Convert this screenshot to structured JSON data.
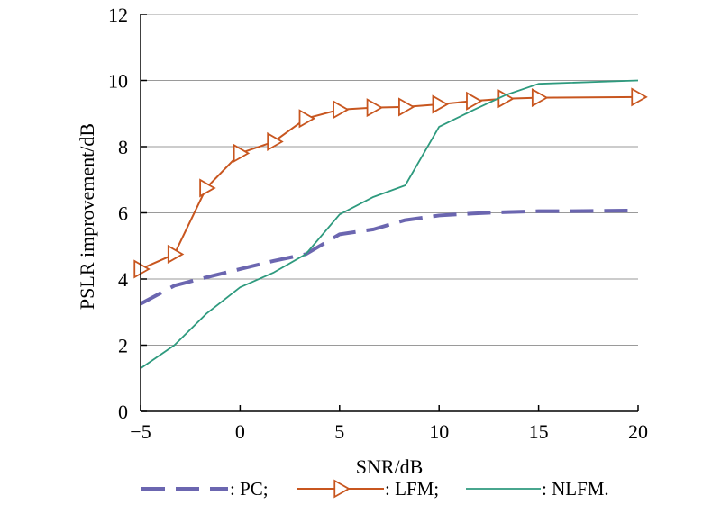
{
  "chart_data": {
    "type": "line",
    "xlabel": "SNR/dB",
    "ylabel": "PSLR improvement/dB",
    "xlim": [
      -5,
      20
    ],
    "ylim": [
      0,
      12
    ],
    "xticks": [
      -5,
      0,
      5,
      10,
      15,
      20
    ],
    "xtick_labels": [
      "−5",
      "0",
      "5",
      "10",
      "15",
      "20"
    ],
    "yticks": [
      0,
      2,
      4,
      6,
      8,
      10,
      12
    ],
    "ytick_labels": [
      "0",
      "2",
      "4",
      "6",
      "8",
      "10",
      "12"
    ],
    "grid": "horizontal",
    "legend_position": "bottom",
    "series": [
      {
        "name": ": PC;",
        "style": "dashed",
        "marker": "none",
        "color": "#6b66b0",
        "x": [
          -5,
          -3.3,
          -1.7,
          0,
          1.7,
          3.3,
          5,
          6.7,
          8.3,
          10,
          11.7,
          13.3,
          15,
          16.7,
          18.3,
          20
        ],
        "y": [
          3.25,
          3.8,
          4.05,
          4.3,
          4.55,
          4.75,
          5.35,
          5.5,
          5.78,
          5.92,
          5.98,
          6.02,
          6.05,
          6.05,
          6.06,
          6.07
        ]
      },
      {
        "name": ": LFM;",
        "style": "solid",
        "marker": "triangle-right",
        "color": "#c8561f",
        "x": [
          -5,
          -3.3,
          -1.7,
          0,
          1.7,
          3.3,
          5,
          6.7,
          8.3,
          10,
          11.7,
          13.3,
          15,
          20
        ],
        "y": [
          4.3,
          4.75,
          6.75,
          7.8,
          8.15,
          8.85,
          9.12,
          9.18,
          9.2,
          9.28,
          9.38,
          9.45,
          9.48,
          9.5
        ]
      },
      {
        "name": ": NLFM.",
        "style": "solid",
        "marker": "none",
        "color": "#2e9a7e",
        "x": [
          -5,
          -3.3,
          -1.7,
          0,
          1.7,
          3.3,
          5,
          6.7,
          8.3,
          10,
          11.7,
          13.3,
          15,
          20
        ],
        "y": [
          1.3,
          2.0,
          2.95,
          3.75,
          4.2,
          4.75,
          5.95,
          6.48,
          6.83,
          8.6,
          9.1,
          9.55,
          9.9,
          10.0
        ]
      }
    ]
  }
}
